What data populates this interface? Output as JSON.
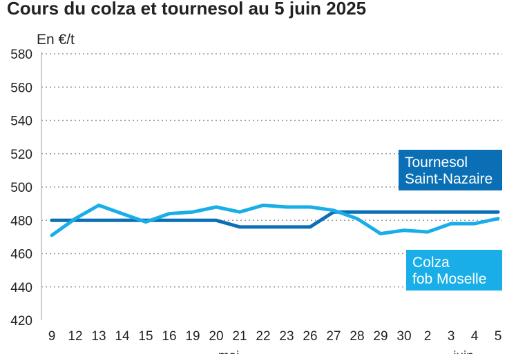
{
  "chart_data": {
    "type": "line",
    "title": "Cours du colza et tournesol au 5 juin 2025",
    "ylabel": "En €/t",
    "xlabel": "",
    "ylim": [
      420,
      580
    ],
    "yticks": [
      420,
      440,
      460,
      480,
      500,
      520,
      540,
      560,
      580
    ],
    "grid": true,
    "categories": [
      "9",
      "12",
      "13",
      "14",
      "15",
      "16",
      "19",
      "20",
      "21",
      "22",
      "23",
      "26",
      "27",
      "28",
      "29",
      "30",
      "2",
      "3",
      "4",
      "5"
    ],
    "month_labels": [
      {
        "label": "mai",
        "at_index": 8
      },
      {
        "label": "juin",
        "at_index": 18
      }
    ],
    "series": [
      {
        "name": "Tournesol Saint-Nazaire",
        "label_lines": [
          "Tournesol",
          "Saint-Nazaire"
        ],
        "color": "#0a6fb5",
        "values": [
          480,
          480,
          480,
          480,
          480,
          480,
          480,
          480,
          476,
          476,
          476,
          476,
          485,
          485,
          485,
          485,
          485,
          485,
          485,
          485
        ]
      },
      {
        "name": "Colza fob Moselle",
        "label_lines": [
          "Colza",
          "fob Moselle"
        ],
        "color": "#19aee8",
        "values": [
          471,
          481,
          489,
          484,
          479,
          484,
          485,
          488,
          485,
          489,
          488,
          488,
          486,
          481,
          472,
          474,
          473,
          478,
          478,
          481
        ]
      }
    ]
  }
}
